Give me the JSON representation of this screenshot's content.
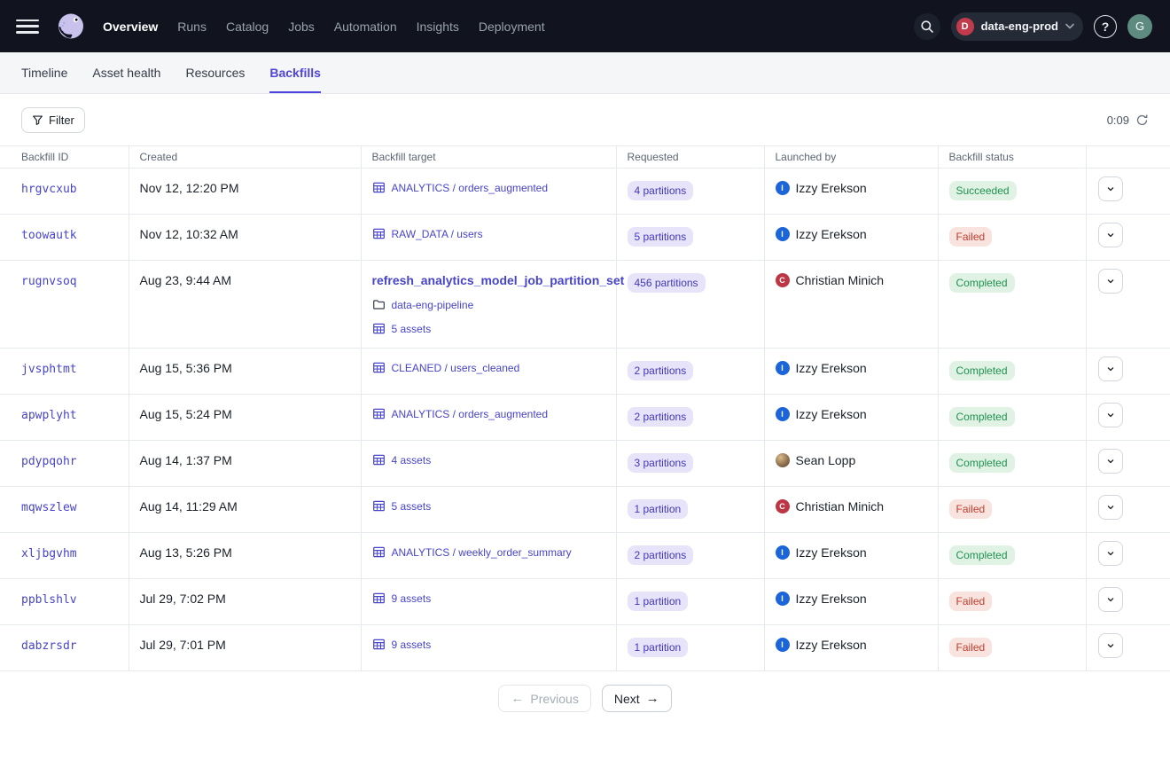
{
  "topnav": {
    "items": [
      {
        "label": "Overview",
        "active": true
      },
      {
        "label": "Runs",
        "active": false
      },
      {
        "label": "Catalog",
        "active": false
      },
      {
        "label": "Jobs",
        "active": false
      },
      {
        "label": "Automation",
        "active": false
      },
      {
        "label": "Insights",
        "active": false
      },
      {
        "label": "Deployment",
        "active": false
      }
    ],
    "deployment_switcher": {
      "initial": "D",
      "initial_color": "#c13b4d",
      "label": "data-eng-prod"
    },
    "help_label": "?",
    "user_avatar": {
      "initial": "G",
      "color": "#5e8b80"
    }
  },
  "tabs": [
    {
      "label": "Timeline",
      "active": false
    },
    {
      "label": "Asset health",
      "active": false
    },
    {
      "label": "Resources",
      "active": false
    },
    {
      "label": "Backfills",
      "active": true
    }
  ],
  "toolbar": {
    "filter_label": "Filter",
    "refresh_timer": "0:09"
  },
  "table": {
    "columns": [
      "Backfill ID",
      "Created",
      "Backfill target",
      "Requested",
      "Launched by",
      "Backfill status",
      ""
    ],
    "rows": [
      {
        "id": "hrgvcxub",
        "created": "Nov 12, 12:20 PM",
        "target": {
          "kind": "asset",
          "icon": "table-icon",
          "label": "ANALYTICS / orders_augmented"
        },
        "requested": "4 partitions",
        "launcher": {
          "name": "Izzy Erekson",
          "type": "initial",
          "initial": "I",
          "color": "#1c64d9"
        },
        "status": {
          "label": "Succeeded",
          "kind": "success"
        }
      },
      {
        "id": "toowautk",
        "created": "Nov 12, 10:32 AM",
        "target": {
          "kind": "asset",
          "icon": "table-icon",
          "label": "RAW_DATA / users"
        },
        "requested": "5 partitions",
        "launcher": {
          "name": "Izzy Erekson",
          "type": "initial",
          "initial": "I",
          "color": "#1c64d9"
        },
        "status": {
          "label": "Failed",
          "kind": "failure"
        }
      },
      {
        "id": "rugnvsoq",
        "created": "Aug 23, 9:44 AM",
        "target": {
          "kind": "job",
          "title": "refresh_analytics_model_job_partition_set",
          "lines": [
            {
              "icon": "folder-icon",
              "label": "data-eng-pipeline"
            },
            {
              "icon": "table-icon",
              "label": "5 assets"
            }
          ]
        },
        "requested": "456 partitions",
        "launcher": {
          "name": "Christian Minich",
          "type": "initial",
          "initial": "C",
          "color": "#be3544"
        },
        "status": {
          "label": "Completed",
          "kind": "success"
        },
        "tall": true
      },
      {
        "id": "jvsphtmt",
        "created": "Aug 15, 5:36 PM",
        "target": {
          "kind": "asset",
          "icon": "table-icon",
          "label": "CLEANED / users_cleaned"
        },
        "requested": "2 partitions",
        "launcher": {
          "name": "Izzy Erekson",
          "type": "initial",
          "initial": "I",
          "color": "#1c64d9"
        },
        "status": {
          "label": "Completed",
          "kind": "success"
        }
      },
      {
        "id": "apwplyht",
        "created": "Aug 15, 5:24 PM",
        "target": {
          "kind": "asset",
          "icon": "table-icon",
          "label": "ANALYTICS / orders_augmented"
        },
        "requested": "2 partitions",
        "launcher": {
          "name": "Izzy Erekson",
          "type": "initial",
          "initial": "I",
          "color": "#1c64d9"
        },
        "status": {
          "label": "Completed",
          "kind": "success"
        }
      },
      {
        "id": "pdypqohr",
        "created": "Aug 14, 1:37 PM",
        "target": {
          "kind": "asset",
          "icon": "table-icon",
          "label": "4 assets"
        },
        "requested": "3 partitions",
        "launcher": {
          "name": "Sean Lopp",
          "type": "photo"
        },
        "status": {
          "label": "Completed",
          "kind": "success"
        }
      },
      {
        "id": "mqwszlew",
        "created": "Aug 14, 11:29 AM",
        "target": {
          "kind": "asset",
          "icon": "table-icon",
          "label": "5 assets"
        },
        "requested": "1 partition",
        "launcher": {
          "name": "Christian Minich",
          "type": "initial",
          "initial": "C",
          "color": "#be3544"
        },
        "status": {
          "label": "Failed",
          "kind": "failure"
        }
      },
      {
        "id": "xljbgvhm",
        "created": "Aug 13, 5:26 PM",
        "target": {
          "kind": "asset",
          "icon": "table-icon",
          "label": "ANALYTICS / weekly_order_summary"
        },
        "requested": "2 partitions",
        "launcher": {
          "name": "Izzy Erekson",
          "type": "initial",
          "initial": "I",
          "color": "#1c64d9"
        },
        "status": {
          "label": "Completed",
          "kind": "success"
        }
      },
      {
        "id": "ppblshlv",
        "created": "Jul 29, 7:02 PM",
        "target": {
          "kind": "asset",
          "icon": "table-icon",
          "label": "9 assets"
        },
        "requested": "1 partition",
        "launcher": {
          "name": "Izzy Erekson",
          "type": "initial",
          "initial": "I",
          "color": "#1c64d9"
        },
        "status": {
          "label": "Failed",
          "kind": "failure"
        }
      },
      {
        "id": "dabzrsdr",
        "created": "Jul 29, 7:01 PM",
        "target": {
          "kind": "asset",
          "icon": "table-icon",
          "label": "9 assets"
        },
        "requested": "1 partition",
        "launcher": {
          "name": "Izzy Erekson",
          "type": "initial",
          "initial": "I",
          "color": "#1c64d9"
        },
        "status": {
          "label": "Failed",
          "kind": "failure"
        }
      }
    ]
  },
  "pagination": {
    "previous_label": "Previous",
    "next_label": "Next"
  },
  "colors": {
    "accent": "#4f43dd",
    "link": "#4744c9",
    "partitions_pill_bg": "#e7e4fa",
    "partitions_pill_text": "#4238b9",
    "success_bg": "#dff2e4",
    "success_text": "#219150",
    "failure_bg": "#f8e3de",
    "failure_text": "#c03f2f",
    "topnav_bg": "#11141f"
  }
}
